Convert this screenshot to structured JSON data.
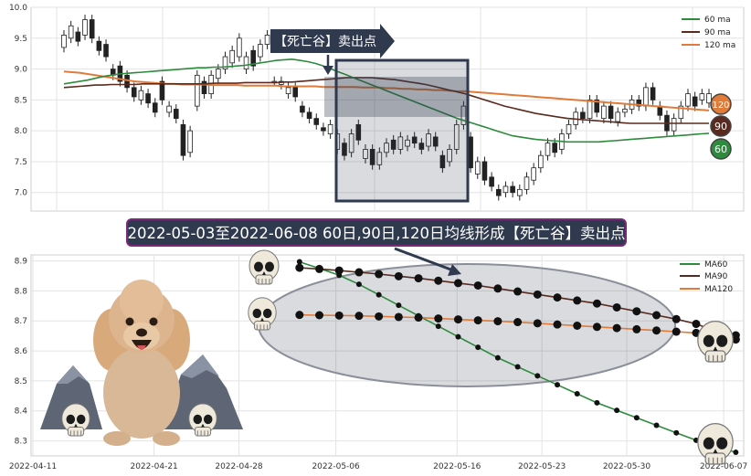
{
  "chart_data": [
    {
      "type": "candlestick",
      "ylim": [
        6.7,
        10.0
      ],
      "yticks": [
        "7.0",
        "7.5",
        "8.0",
        "8.5",
        "9.0",
        "9.5",
        "10.0"
      ],
      "legend": [
        "60 ma",
        "90 ma",
        "120 ma"
      ],
      "legend_position": "top-right",
      "badges": [
        "120",
        "90",
        "60"
      ],
      "annotation": "【死亡谷】卖出点",
      "colors": {
        "ma60": "#2e8b3e",
        "ma90": "#5a2a1e",
        "ma120": "#e07b39",
        "box": "#2f3a4f",
        "badge120": "#e07b39",
        "badge90": "#5a2a1e",
        "badge60": "#2e8b3e"
      },
      "candles": [
        [
          9.35,
          9.55
        ],
        [
          9.5,
          9.7
        ],
        [
          9.6,
          9.45
        ],
        [
          9.55,
          9.8
        ],
        [
          9.8,
          9.5
        ],
        [
          9.45,
          9.3
        ],
        [
          9.4,
          9.2
        ],
        [
          9.0,
          8.9
        ],
        [
          9.05,
          8.8
        ],
        [
          8.9,
          8.7
        ],
        [
          8.7,
          8.55
        ],
        [
          8.5,
          8.65
        ],
        [
          8.6,
          8.45
        ],
        [
          8.45,
          8.3
        ],
        [
          8.8,
          8.5
        ],
        [
          8.3,
          8.4
        ],
        [
          8.35,
          8.2
        ],
        [
          8.1,
          7.6
        ],
        [
          7.65,
          8.0
        ],
        [
          8.4,
          8.9
        ],
        [
          8.8,
          8.6
        ],
        [
          8.6,
          8.9
        ],
        [
          8.85,
          9.0
        ],
        [
          9.0,
          9.2
        ],
        [
          9.1,
          9.3
        ],
        [
          9.2,
          9.5
        ],
        [
          9.0,
          9.2
        ],
        [
          9.3,
          9.05
        ],
        [
          9.2,
          9.4
        ],
        [
          9.4,
          9.55
        ],
        [
          8.8,
          8.8
        ],
        [
          8.75,
          8.8
        ],
        [
          8.6,
          8.7
        ],
        [
          8.7,
          8.55
        ],
        [
          8.4,
          8.3
        ],
        [
          8.3,
          8.2
        ],
        [
          8.2,
          8.1
        ],
        [
          8.05,
          8.0
        ],
        [
          7.95,
          8.1
        ],
        [
          7.7,
          7.95
        ],
        [
          7.8,
          7.6
        ],
        [
          7.65,
          7.95
        ],
        [
          8.1,
          7.85
        ],
        [
          7.55,
          7.7
        ],
        [
          7.7,
          7.45
        ],
        [
          7.45,
          7.65
        ],
        [
          7.65,
          7.8
        ],
        [
          7.85,
          7.7
        ],
        [
          7.7,
          7.9
        ],
        [
          7.75,
          7.85
        ],
        [
          7.9,
          7.8
        ],
        [
          7.8,
          7.7
        ],
        [
          7.75,
          7.95
        ],
        [
          7.9,
          7.75
        ],
        [
          7.6,
          7.4
        ],
        [
          7.5,
          7.7
        ],
        [
          7.7,
          8.1
        ],
        [
          8.1,
          8.4
        ],
        [
          7.9,
          7.4
        ],
        [
          7.3,
          7.5
        ],
        [
          7.5,
          7.2
        ],
        [
          7.25,
          7.1
        ],
        [
          7.05,
          6.95
        ],
        [
          7.0,
          7.1
        ],
        [
          7.1,
          7.0
        ],
        [
          6.95,
          7.05
        ],
        [
          7.05,
          7.25
        ],
        [
          7.2,
          7.4
        ],
        [
          7.4,
          7.6
        ],
        [
          7.6,
          7.8
        ],
        [
          7.8,
          7.65
        ],
        [
          7.7,
          7.95
        ],
        [
          7.95,
          8.1
        ],
        [
          8.1,
          8.3
        ],
        [
          8.3,
          8.2
        ],
        [
          8.2,
          8.5
        ],
        [
          8.5,
          8.3
        ],
        [
          8.2,
          8.4
        ],
        [
          8.4,
          8.2
        ],
        [
          8.15,
          8.3
        ],
        [
          8.3,
          8.35
        ],
        [
          8.35,
          8.5
        ],
        [
          8.5,
          8.4
        ],
        [
          8.4,
          8.7
        ],
        [
          8.7,
          8.5
        ],
        [
          8.4,
          8.25
        ],
        [
          8.25,
          8.0
        ],
        [
          8.0,
          8.2
        ],
        [
          8.2,
          8.4
        ],
        [
          8.4,
          8.6
        ],
        [
          8.55,
          8.4
        ],
        [
          8.5,
          8.6
        ],
        [
          8.45,
          8.6
        ]
      ],
      "ma60": [
        8.76,
        8.78,
        8.8,
        8.82,
        8.85,
        8.88,
        8.9,
        8.92,
        8.93,
        8.94,
        8.95,
        8.96,
        8.97,
        8.98,
        8.99,
        9.0,
        9.01,
        9.02,
        9.02,
        9.03,
        9.03,
        9.04,
        9.05,
        9.06,
        9.08,
        9.1,
        9.12,
        9.14,
        9.15,
        9.16,
        9.14,
        9.12,
        9.09,
        9.05,
        9.0,
        8.95,
        8.9,
        8.85,
        8.8,
        8.75,
        8.7,
        8.65,
        8.6,
        8.55,
        8.5,
        8.45,
        8.4,
        8.35,
        8.3,
        8.25,
        8.2,
        8.16,
        8.12,
        8.08,
        8.04,
        8.0,
        7.96,
        7.92,
        7.9,
        7.88,
        7.86,
        7.85,
        7.84,
        7.83,
        7.82,
        7.82,
        7.82,
        7.82,
        7.82,
        7.83,
        7.84,
        7.85,
        7.86,
        7.87,
        7.88,
        7.89,
        7.9,
        7.91,
        7.92,
        7.93,
        7.94,
        7.95,
        7.96
      ],
      "ma90": [
        8.7,
        8.71,
        8.72,
        8.73,
        8.74,
        8.74,
        8.75,
        8.75,
        8.75,
        8.75,
        8.76,
        8.76,
        8.76,
        8.76,
        8.76,
        8.76,
        8.76,
        8.76,
        8.76,
        8.77,
        8.77,
        8.77,
        8.77,
        8.78,
        8.78,
        8.78,
        8.78,
        8.78,
        8.79,
        8.79,
        8.8,
        8.81,
        8.82,
        8.83,
        8.84,
        8.85,
        8.86,
        8.86,
        8.86,
        8.86,
        8.85,
        8.84,
        8.83,
        8.81,
        8.79,
        8.77,
        8.75,
        8.72,
        8.69,
        8.66,
        8.63,
        8.6,
        8.56,
        8.52,
        8.48,
        8.44,
        8.4,
        8.37,
        8.34,
        8.31,
        8.28,
        8.26,
        8.24,
        8.22,
        8.2,
        8.19,
        8.18,
        8.17,
        8.16,
        8.15,
        8.14,
        8.13,
        8.12,
        8.12,
        8.12,
        8.12,
        8.12,
        8.12,
        8.12,
        8.12,
        8.12,
        8.12,
        8.12
      ],
      "ma120": [
        8.96,
        8.95,
        8.94,
        8.92,
        8.9,
        8.88,
        8.86,
        8.84,
        8.82,
        8.8,
        8.79,
        8.78,
        8.77,
        8.76,
        8.76,
        8.75,
        8.75,
        8.75,
        8.75,
        8.74,
        8.74,
        8.74,
        8.74,
        8.73,
        8.73,
        8.73,
        8.73,
        8.73,
        8.72,
        8.72,
        8.72,
        8.72,
        8.72,
        8.71,
        8.71,
        8.71,
        8.71,
        8.71,
        8.7,
        8.7,
        8.7,
        8.69,
        8.69,
        8.68,
        8.68,
        8.67,
        8.67,
        8.66,
        8.66,
        8.65,
        8.64,
        8.64,
        8.63,
        8.62,
        8.61,
        8.6,
        8.59,
        8.58,
        8.57,
        8.56,
        8.55,
        8.54,
        8.53,
        8.52,
        8.51,
        8.5,
        8.49,
        8.48,
        8.47,
        8.46,
        8.45,
        8.44,
        8.43,
        8.42,
        8.41,
        8.4,
        8.39,
        8.38,
        8.37,
        8.36,
        8.35,
        8.34,
        8.33
      ]
    },
    {
      "type": "line",
      "title": "2022-05-03至2022-06-08 60日,90日,120日均线形成【死亡谷】卖出点",
      "ylim": [
        8.25,
        8.92
      ],
      "yticks": [
        "8.3",
        "8.4",
        "8.5",
        "8.6",
        "8.7",
        "8.8",
        "8.9"
      ],
      "xticks": [
        "2022-04-11",
        "2022-04-21",
        "2022-04-28",
        "2022-05-06",
        "2022-05-16",
        "2022-05-23",
        "2022-05-30",
        "2022-06-07"
      ],
      "xtick_days": [
        0,
        10,
        17,
        25,
        35,
        42,
        49,
        57
      ],
      "x_start_day": 22,
      "x_end_day": 58,
      "legend": [
        "MA60",
        "MA90",
        "MA120"
      ],
      "legend_position": "top-right",
      "colors": {
        "MA60": "#2e8b3e",
        "MA90": "#5a2a1e",
        "MA120": "#e07b39"
      },
      "series": [
        {
          "name": "MA60",
          "values": [
            8.897,
            8.875,
            8.852,
            8.822,
            8.787,
            8.752,
            8.717,
            8.682,
            8.647,
            8.612,
            8.577,
            8.547,
            8.517,
            8.487,
            8.457,
            8.427,
            8.402,
            8.377,
            8.352,
            8.327,
            8.302,
            8.282,
            8.262
          ]
        },
        {
          "name": "MA90",
          "values": [
            8.877,
            8.873,
            8.868,
            8.862,
            8.856,
            8.849,
            8.842,
            8.834,
            8.826,
            8.818,
            8.808,
            8.798,
            8.788,
            8.778,
            8.768,
            8.758,
            8.745,
            8.732,
            8.719,
            8.706,
            8.69,
            8.665,
            8.638
          ]
        },
        {
          "name": "MA120",
          "values": [
            8.72,
            8.719,
            8.718,
            8.717,
            8.715,
            8.713,
            8.711,
            8.708,
            8.705,
            8.702,
            8.699,
            8.696,
            8.692,
            8.688,
            8.684,
            8.68,
            8.676,
            8.672,
            8.668,
            8.664,
            8.66,
            8.656,
            8.652
          ]
        }
      ]
    }
  ]
}
